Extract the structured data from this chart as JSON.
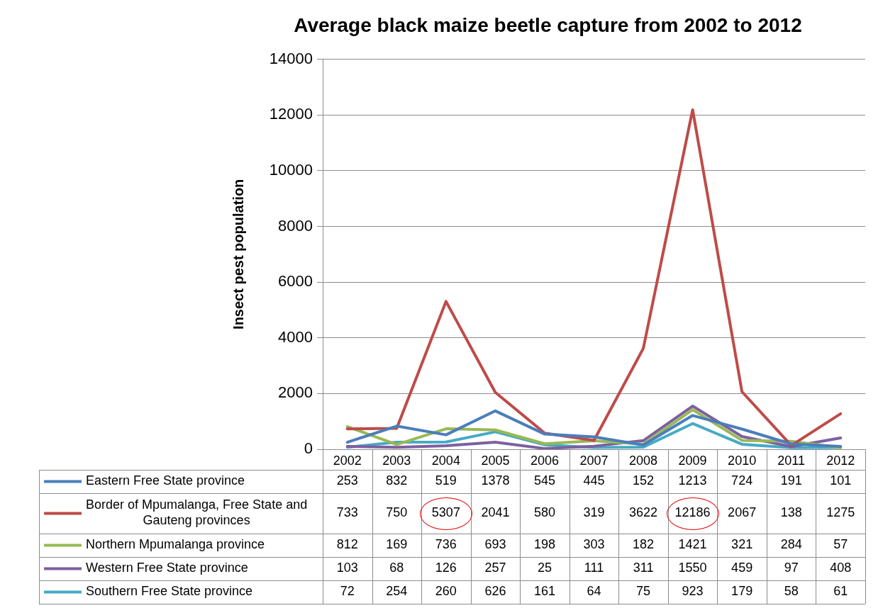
{
  "chart_data": {
    "type": "line",
    "title": "Average black maize beetle capture from 2002 to 2012",
    "ylabel": "Insect pest population",
    "categories": [
      "2002",
      "2003",
      "2004",
      "2005",
      "2006",
      "2007",
      "2008",
      "2009",
      "2010",
      "2011",
      "2012"
    ],
    "series": [
      {
        "name": "Eastern Free State province",
        "color": "#4a7ebb",
        "values": [
          253,
          832,
          519,
          1378,
          545,
          445,
          152,
          1213,
          724,
          191,
          101
        ]
      },
      {
        "name": "Border of Mpumalanga, Free State and Gauteng provinces",
        "color": "#be4b48",
        "values": [
          733,
          750,
          5307,
          2041,
          580,
          319,
          3622,
          12186,
          2067,
          138,
          1275
        ]
      },
      {
        "name": "Northern Mpumalanga province",
        "color": "#98b954",
        "values": [
          812,
          169,
          736,
          693,
          198,
          303,
          182,
          1421,
          321,
          284,
          57
        ]
      },
      {
        "name": "Western Free State province",
        "color": "#7d60a0",
        "values": [
          103,
          68,
          126,
          257,
          25,
          111,
          311,
          1550,
          459,
          97,
          408
        ]
      },
      {
        "name": "Southern Free State province",
        "color": "#46aac5",
        "values": [
          72,
          254,
          260,
          626,
          161,
          64,
          75,
          923,
          179,
          58,
          61
        ]
      }
    ],
    "ylim": [
      0,
      14000
    ],
    "yticks": [
      0,
      2000,
      4000,
      6000,
      8000,
      10000,
      12000,
      14000
    ],
    "grid": "y",
    "legend": "bottom",
    "data_labels": true,
    "marker": "none",
    "line_style": "solid"
  }
}
